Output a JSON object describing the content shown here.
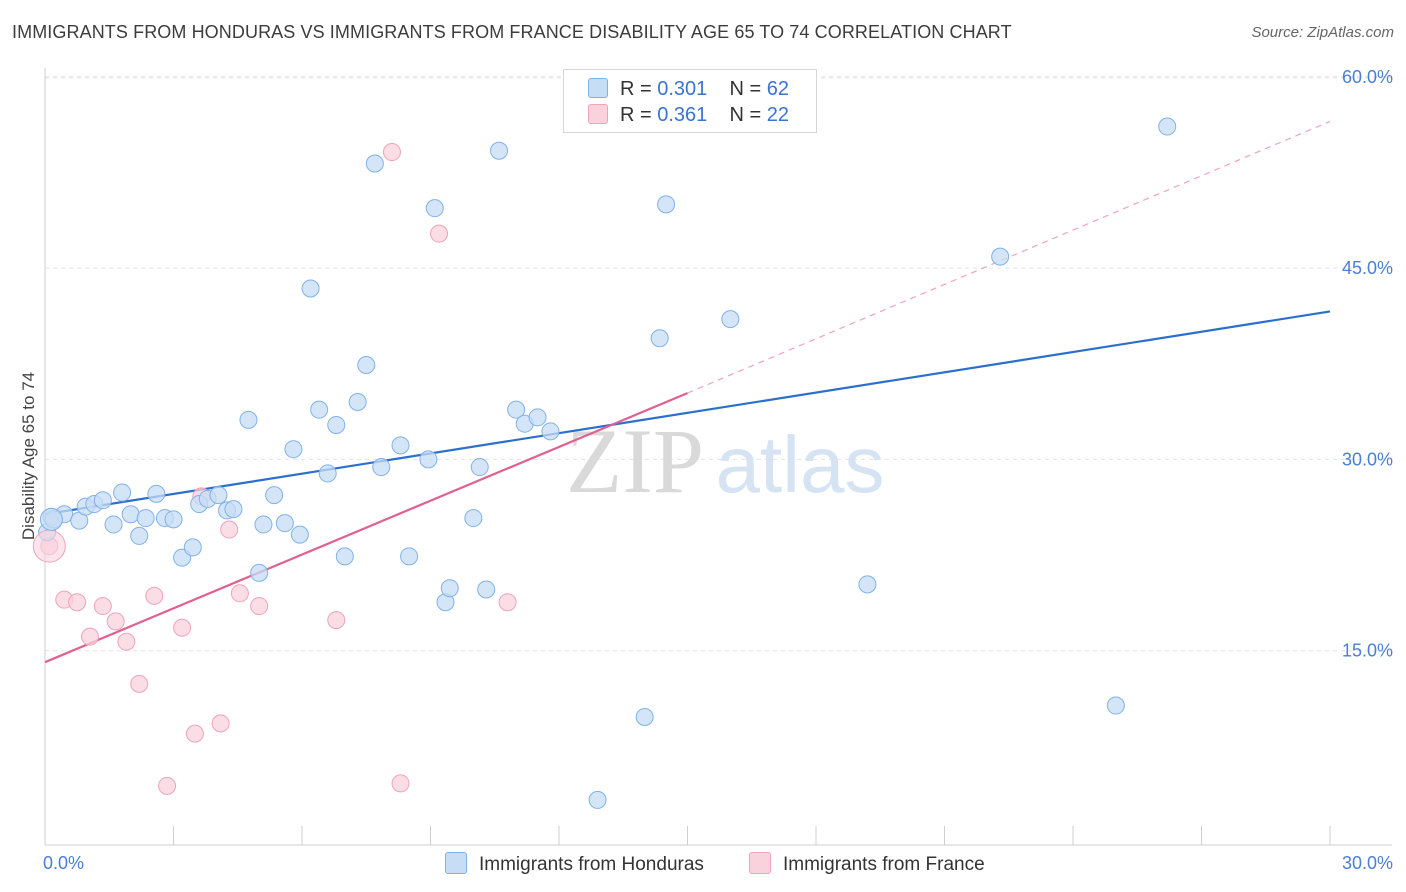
{
  "title": "IMMIGRANTS FROM HONDURAS VS IMMIGRANTS FROM FRANCE DISABILITY AGE 65 TO 74 CORRELATION CHART",
  "source": "Source: ZipAtlas.com",
  "watermark": {
    "zip": "ZIP",
    "atlas": "atlas"
  },
  "legend": {
    "rows": [
      {
        "r_label": "R =",
        "r_value": "0.301",
        "n_label": "N =",
        "n_value": "62"
      },
      {
        "r_label": "R =",
        "r_value": "0.361",
        "n_label": "N =",
        "n_value": "22"
      }
    ]
  },
  "chart_data": {
    "type": "scatter",
    "title": "IMMIGRANTS FROM HONDURAS VS IMMIGRANTS FROM FRANCE DISABILITY AGE 65 TO 74 CORRELATION CHART",
    "xlabel": "",
    "ylabel": "Disability Age 65 to 74",
    "xlim": [
      0,
      30
    ],
    "ylim": [
      0,
      63
    ],
    "x_tick_labels": [
      "0.0%",
      "30.0%"
    ],
    "y_ticks": [
      15,
      30,
      45,
      60
    ],
    "y_tick_labels": [
      "15.0%",
      "30.0%",
      "45.0%",
      "60.0%"
    ],
    "grid": true,
    "legend_position": "top-center",
    "series": [
      {
        "name": "Immigrants from Honduras",
        "color": "#7fb2ea",
        "fill": "#c7dcf5",
        "line_color": "#2b6fce",
        "R": 0.301,
        "N": 62,
        "trend": {
          "x": [
            0,
            30
          ],
          "y": [
            25.7,
            41.6
          ],
          "dashed_extension": false
        },
        "points": [
          [
            0.05,
            24.3
          ],
          [
            0.15,
            25.5
          ],
          [
            0.45,
            25.7
          ],
          [
            0.8,
            25.2
          ],
          [
            0.95,
            26.3
          ],
          [
            1.15,
            26.5
          ],
          [
            1.35,
            26.8
          ],
          [
            1.6,
            24.9
          ],
          [
            1.8,
            27.4
          ],
          [
            2.0,
            25.7
          ],
          [
            2.2,
            24.0
          ],
          [
            2.35,
            25.4
          ],
          [
            2.6,
            27.3
          ],
          [
            2.8,
            25.4
          ],
          [
            3.0,
            25.3
          ],
          [
            3.2,
            22.3
          ],
          [
            3.45,
            23.1
          ],
          [
            3.6,
            26.5
          ],
          [
            3.8,
            26.9
          ],
          [
            4.05,
            27.2
          ],
          [
            4.25,
            26.0
          ],
          [
            4.4,
            26.1
          ],
          [
            4.75,
            33.1
          ],
          [
            5.0,
            21.1
          ],
          [
            5.1,
            24.9
          ],
          [
            5.35,
            27.2
          ],
          [
            5.6,
            25.0
          ],
          [
            5.8,
            30.8
          ],
          [
            5.95,
            24.1
          ],
          [
            6.2,
            43.4
          ],
          [
            6.4,
            33.9
          ],
          [
            6.6,
            28.9
          ],
          [
            6.8,
            32.7
          ],
          [
            7.0,
            22.4
          ],
          [
            7.3,
            34.5
          ],
          [
            7.5,
            37.4
          ],
          [
            7.7,
            53.2
          ],
          [
            7.85,
            29.4
          ],
          [
            8.3,
            31.1
          ],
          [
            8.5,
            22.4
          ],
          [
            8.95,
            30.0
          ],
          [
            9.1,
            49.7
          ],
          [
            9.35,
            18.8
          ],
          [
            9.45,
            19.9
          ],
          [
            10.0,
            25.4
          ],
          [
            10.15,
            29.4
          ],
          [
            10.3,
            19.8
          ],
          [
            10.6,
            54.2
          ],
          [
            11.0,
            33.9
          ],
          [
            11.2,
            32.8
          ],
          [
            11.5,
            33.3
          ],
          [
            11.8,
            32.2
          ],
          [
            12.9,
            3.3
          ],
          [
            14.0,
            9.8
          ],
          [
            14.35,
            39.5
          ],
          [
            14.5,
            50.0
          ],
          [
            16.0,
            41.0
          ],
          [
            19.2,
            20.2
          ],
          [
            22.3,
            45.9
          ],
          [
            25.0,
            10.7
          ],
          [
            26.2,
            56.1
          ],
          [
            0.2,
            25.3
          ]
        ]
      },
      {
        "name": "Immigrants from France",
        "color": "#f0a3ba",
        "fill": "#f9d2de",
        "line_color": "#e0608f",
        "R": 0.361,
        "N": 22,
        "trend": {
          "x": [
            0,
            15
          ],
          "y": [
            14.1,
            35.2
          ],
          "extension_x": [
            15,
            30
          ],
          "extension_y": [
            35.2,
            56.5
          ]
        },
        "points": [
          [
            0.1,
            23.2
          ],
          [
            0.45,
            19.0
          ],
          [
            0.75,
            18.8
          ],
          [
            1.05,
            16.1
          ],
          [
            1.35,
            18.5
          ],
          [
            1.65,
            17.3
          ],
          [
            1.9,
            15.7
          ],
          [
            2.2,
            12.4
          ],
          [
            2.55,
            19.3
          ],
          [
            2.85,
            4.4
          ],
          [
            3.2,
            16.8
          ],
          [
            3.5,
            8.5
          ],
          [
            3.65,
            27.1
          ],
          [
            4.1,
            9.3
          ],
          [
            4.3,
            24.5
          ],
          [
            4.55,
            19.5
          ],
          [
            5.0,
            18.5
          ],
          [
            6.8,
            17.4
          ],
          [
            8.1,
            54.1
          ],
          [
            8.3,
            4.6
          ],
          [
            9.2,
            47.7
          ],
          [
            10.8,
            18.8
          ]
        ]
      }
    ]
  },
  "bottom_legend": [
    {
      "label": "Immigrants from Honduras"
    },
    {
      "label": "Immigrants from France"
    }
  ]
}
